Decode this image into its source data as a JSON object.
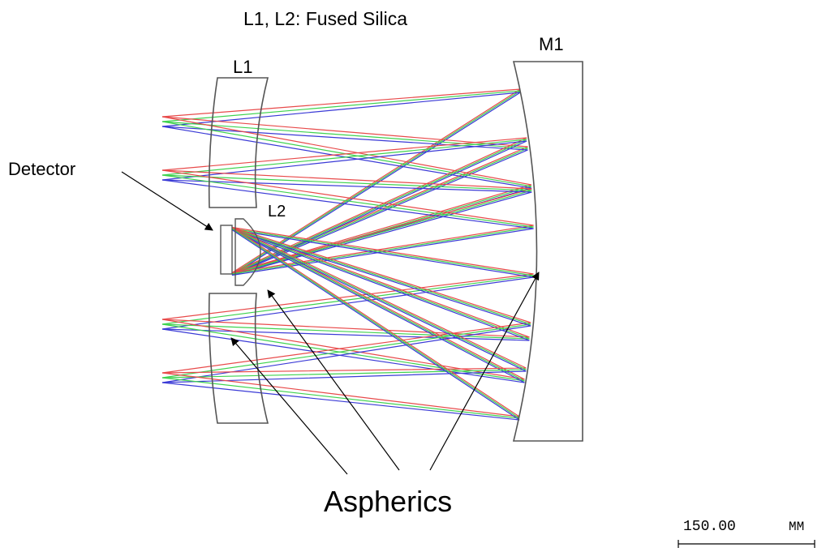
{
  "title": "L1, L2: Fused Silica",
  "labels": {
    "l1": "L1",
    "l2": "L2",
    "m1": "M1",
    "detector": "Detector",
    "aspherics": "Aspherics"
  },
  "scale_bar": {
    "value": "150.00",
    "unit": "MM"
  },
  "colors": {
    "ray_red": "#e84a4a",
    "ray_green": "#3fd24f",
    "ray_blue": "#3a3ad6",
    "outline": "#555555",
    "arrow": "#000000"
  }
}
